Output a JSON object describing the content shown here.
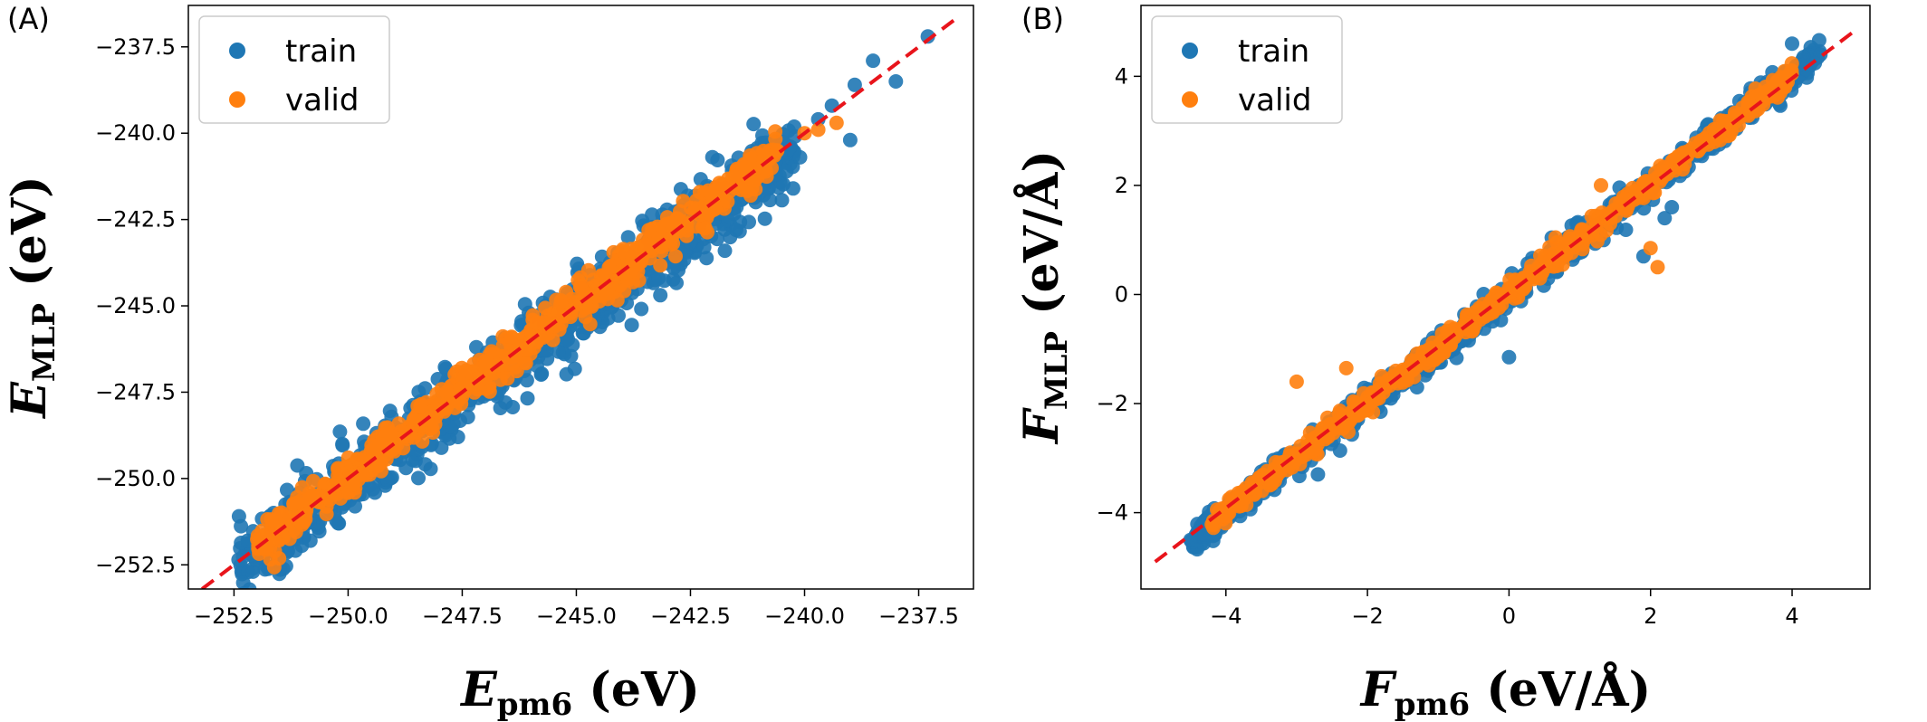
{
  "figure": {
    "panels": [
      {
        "label": "(A)"
      },
      {
        "label": "(B)"
      }
    ]
  },
  "colors": {
    "train": "#1f77b4",
    "valid": "#ff7f0e",
    "parity_line": "#e8141b"
  },
  "chart_data": [
    {
      "type": "scatter",
      "panel": "(A)",
      "xlabel": {
        "symbol": "E",
        "subscript": "pm6",
        "unit": "(eV)"
      },
      "ylabel": {
        "symbol": "E",
        "subscript": "MLP",
        "unit": "(eV)"
      },
      "xlim": [
        -253.5,
        -236.3
      ],
      "ylim": [
        -253.2,
        -236.3
      ],
      "xticks": [
        -252.5,
        -250.0,
        -247.5,
        -245.0,
        -242.5,
        -240.0,
        -237.5
      ],
      "xtick_labels": [
        "−252.5",
        "−250.0",
        "−247.5",
        "−245.0",
        "−242.5",
        "−240.0",
        "−237.5"
      ],
      "yticks": [
        -252.5,
        -250.0,
        -247.5,
        -245.0,
        -242.5,
        -240.0,
        -237.5
      ],
      "ytick_labels": [
        "−252.5",
        "−250.0",
        "−247.5",
        "−245.0",
        "−242.5",
        "−240.0",
        "−237.5"
      ],
      "grid": false,
      "legend": {
        "position": "top-left",
        "entries": [
          "train",
          "valid"
        ]
      },
      "parity_line": [
        [
          -253.2,
          -253.2
        ],
        [
          -236.6,
          -236.6
        ]
      ],
      "series": [
        {
          "name": "train",
          "band": {
            "x_range": [
              -252.4,
              -240.2
            ],
            "spread": 0.55,
            "bias": -0.2
          },
          "points": [
            [
              -252.4,
              -252.35
            ],
            [
              -252.2,
              -251.8
            ],
            [
              -246.2,
              -246.6
            ],
            [
              -245.6,
              -245.8
            ],
            [
              -244.6,
              -245.4
            ],
            [
              -244.9,
              -245.6
            ],
            [
              -243.2,
              -244.2
            ],
            [
              -241.5,
              -242.8
            ],
            [
              -241.0,
              -241.2
            ],
            [
              -240.1,
              -240.7
            ],
            [
              -239.7,
              -239.6
            ],
            [
              -239.4,
              -239.2
            ],
            [
              -239.0,
              -240.2
            ],
            [
              -238.5,
              -237.9
            ],
            [
              -238.0,
              -238.5
            ],
            [
              -237.3,
              -237.2
            ],
            [
              -238.9,
              -238.6
            ],
            [
              -240.8,
              -241.6
            ],
            [
              -242.2,
              -243.3
            ]
          ]
        },
        {
          "name": "valid",
          "band": {
            "x_range": [
              -252.0,
              -240.6
            ],
            "spread": 0.3,
            "bias": 0.05
          },
          "points": [
            [
              -240.6,
              -240.5
            ],
            [
              -240.0,
              -240.0
            ],
            [
              -239.7,
              -239.9
            ],
            [
              -239.3,
              -239.7
            ],
            [
              -241.3,
              -241.0
            ],
            [
              -242.0,
              -241.9
            ],
            [
              -251.8,
              -251.9
            ]
          ]
        }
      ]
    },
    {
      "type": "scatter",
      "panel": "(B)",
      "xlabel": {
        "symbol": "F",
        "subscript": "pm6",
        "unit": "(eV/Å)"
      },
      "ylabel": {
        "symbol": "F",
        "subscript": "MLP",
        "unit": "(eV/Å)"
      },
      "xlim": [
        -5.2,
        5.1
      ],
      "ylim": [
        -5.4,
        5.3
      ],
      "xticks": [
        -4,
        -2,
        0,
        2,
        4
      ],
      "xtick_labels": [
        "−4",
        "−2",
        "0",
        "2",
        "4"
      ],
      "yticks": [
        -4,
        -2,
        0,
        2,
        4
      ],
      "ytick_labels": [
        "−4",
        "−2",
        "0",
        "2",
        "4"
      ],
      "grid": false,
      "legend": {
        "position": "top-left",
        "entries": [
          "train",
          "valid"
        ]
      },
      "parity_line": [
        [
          -5.0,
          -4.9
        ],
        [
          4.9,
          4.85
        ]
      ],
      "series": [
        {
          "name": "train",
          "band": {
            "x_range": [
              -4.5,
              4.4
            ],
            "spread": 0.14,
            "bias": 0.0
          },
          "points": [
            [
              -4.5,
              -4.5
            ],
            [
              -4.4,
              -4.35
            ],
            [
              -4.3,
              -4.4
            ],
            [
              -3.5,
              -3.25
            ],
            [
              -2.7,
              -3.3
            ],
            [
              -1.3,
              -1.7
            ],
            [
              0.0,
              -1.15
            ],
            [
              1.5,
              1.6
            ],
            [
              2.2,
              1.4
            ],
            [
              2.3,
              1.6
            ],
            [
              1.9,
              0.7
            ],
            [
              2.8,
              3.1
            ],
            [
              3.7,
              3.9
            ],
            [
              4.0,
              4.6
            ],
            [
              4.1,
              4.2
            ],
            [
              4.4,
              4.4
            ],
            [
              3.9,
              4.0
            ],
            [
              -3.9,
              -4.0
            ]
          ]
        },
        {
          "name": "valid",
          "band": {
            "x_range": [
              -4.2,
              4.0
            ],
            "spread": 0.1,
            "bias": 0.03
          },
          "points": [
            [
              -3.0,
              -1.6
            ],
            [
              -2.3,
              -1.35
            ],
            [
              -1.6,
              -1.4
            ],
            [
              2.0,
              0.85
            ],
            [
              2.1,
              0.5
            ],
            [
              1.3,
              2.0
            ],
            [
              3.9,
              3.8
            ],
            [
              -3.9,
              -3.8
            ],
            [
              -1.8,
              -1.5
            ]
          ]
        }
      ]
    }
  ]
}
